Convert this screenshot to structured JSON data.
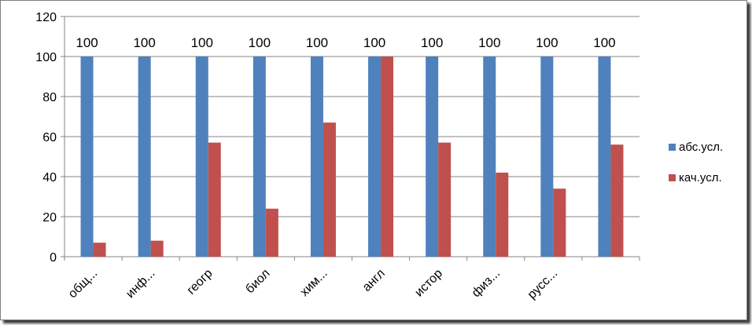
{
  "chart_data": {
    "type": "bar",
    "categories": [
      "общ...",
      "инф...",
      "геогр",
      "биол",
      "хим...",
      "англ",
      "истор",
      "физ...",
      "русс...",
      ""
    ],
    "series": [
      {
        "name": "абс.усл.",
        "color": "#4f81bd",
        "values": [
          100,
          100,
          100,
          100,
          100,
          100,
          100,
          100,
          100,
          100
        ],
        "labels": [
          "100",
          "100",
          "100",
          "100",
          "100",
          "100",
          "100",
          "100",
          "100",
          "100"
        ]
      },
      {
        "name": "кач.усл.",
        "color": "#c0504d",
        "values": [
          7,
          8,
          57,
          24,
          67,
          100,
          57,
          42,
          34,
          56
        ]
      }
    ],
    "ylim": [
      0,
      120
    ],
    "yticks": [
      "0",
      "20",
      "40",
      "60",
      "80",
      "100",
      "120"
    ],
    "grid": true,
    "legend_position": "right"
  }
}
